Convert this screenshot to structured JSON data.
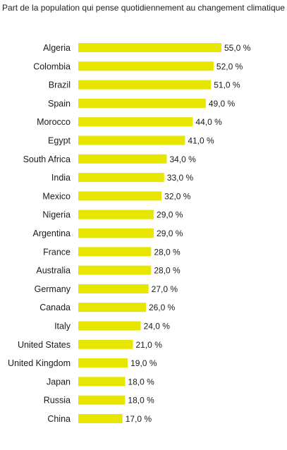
{
  "chart_data": {
    "type": "bar",
    "orientation": "horizontal",
    "title": "Part de la population qui pense quotidiennement au changement climatique",
    "categories": [
      "Algeria",
      "Colombia",
      "Brazil",
      "Spain",
      "Morocco",
      "Egypt",
      "South Africa",
      "India",
      "Mexico",
      "Nigeria",
      "Argentina",
      "France",
      "Australia",
      "Germany",
      "Canada",
      "Italy",
      "United States",
      "United Kingdom",
      "Japan",
      "Russia",
      "China"
    ],
    "values": [
      55,
      52,
      51,
      49,
      44,
      41,
      34,
      33,
      32,
      29,
      29,
      28,
      28,
      27,
      26,
      24,
      21,
      19,
      18,
      18,
      17
    ],
    "value_labels": [
      "55,0 %",
      "52,0 %",
      "51,0 %",
      "49,0 %",
      "44,0 %",
      "41,0 %",
      "34,0 %",
      "33,0 %",
      "32,0 %",
      "29,0 %",
      "29,0 %",
      "28,0 %",
      "28,0 %",
      "27,0 %",
      "26,0 %",
      "24,0 %",
      "21,0 %",
      "19,0 %",
      "18,0 %",
      "18,0 %",
      "17,0 %"
    ],
    "xlabel": "",
    "ylabel": "",
    "xlim": [
      0,
      55
    ],
    "bar_color": "#e6e600",
    "grid": false,
    "legend": "none"
  }
}
